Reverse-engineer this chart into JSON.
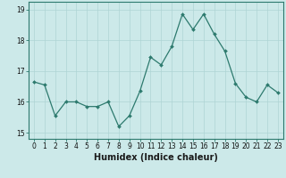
{
  "x": [
    0,
    1,
    2,
    3,
    4,
    5,
    6,
    7,
    8,
    9,
    10,
    11,
    12,
    13,
    14,
    15,
    16,
    17,
    18,
    19,
    20,
    21,
    22,
    23
  ],
  "y": [
    16.65,
    16.55,
    15.55,
    16.0,
    16.0,
    15.85,
    15.85,
    16.0,
    15.2,
    15.55,
    16.35,
    17.45,
    17.2,
    17.8,
    18.85,
    18.35,
    18.85,
    18.2,
    17.65,
    16.6,
    16.15,
    16.0,
    16.55,
    16.3
  ],
  "line_color": "#2d7a6e",
  "marker": "D",
  "markersize": 2.0,
  "linewidth": 0.9,
  "bg_color": "#cce9e9",
  "grid_color": "#aed4d4",
  "xlabel": "Humidex (Indice chaleur)",
  "xlim": [
    -0.5,
    23.5
  ],
  "ylim": [
    14.8,
    19.25
  ],
  "yticks": [
    15,
    16,
    17,
    18,
    19
  ],
  "xticks": [
    0,
    1,
    2,
    3,
    4,
    5,
    6,
    7,
    8,
    9,
    10,
    11,
    12,
    13,
    14,
    15,
    16,
    17,
    18,
    19,
    20,
    21,
    22,
    23
  ],
  "xtick_labels": [
    "0",
    "1",
    "2",
    "3",
    "4",
    "5",
    "6",
    "7",
    "8",
    "9",
    "10",
    "11",
    "12",
    "13",
    "14",
    "15",
    "16",
    "17",
    "18",
    "19",
    "20",
    "21",
    "22",
    "23"
  ],
  "tick_fontsize": 5.5,
  "xlabel_fontsize": 7.0,
  "spine_color": "#2d7a6e"
}
